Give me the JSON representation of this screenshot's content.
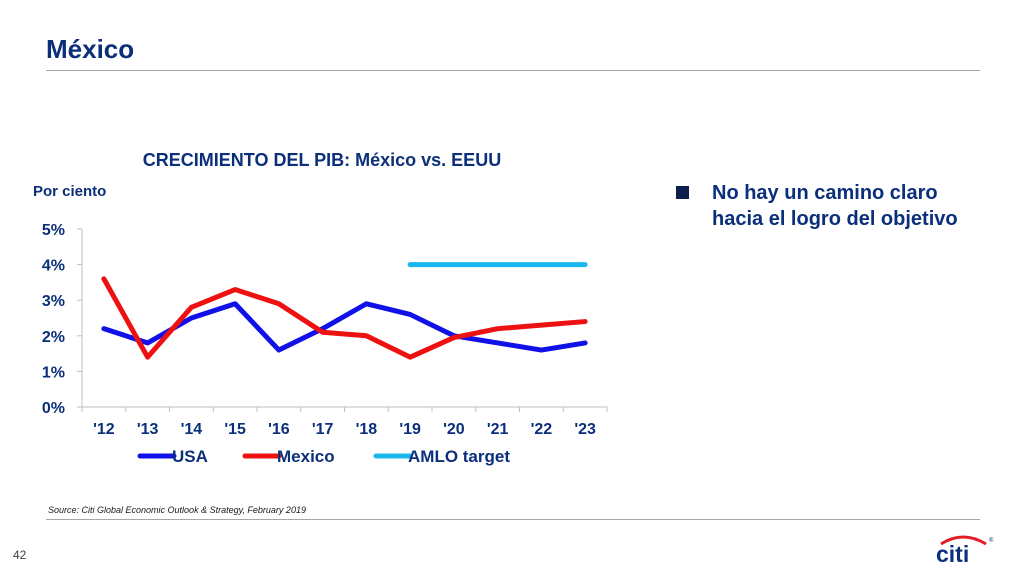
{
  "slide": {
    "title": "México",
    "page_number": "42",
    "source": "Source: Citi Global Economic Outlook & Strategy, February 2019",
    "bullet": "No hay un camino claro hacia el logro del objetivo",
    "logo_text": "citi",
    "logo_mark": "®",
    "title_color": "#0b2f7a"
  },
  "chart_data": {
    "type": "line",
    "title": "CRECIMIENTO DEL PIB: México vs. EEUU",
    "ylabel": "Por ciento",
    "xlabel": "",
    "categories": [
      "'12",
      "'13",
      "'14",
      "'15",
      "'16",
      "'17",
      "'18",
      "'19",
      "'20",
      "'21",
      "'22",
      "'23"
    ],
    "yticks": [
      "0%",
      "1%",
      "2%",
      "3%",
      "4%",
      "5%"
    ],
    "ylim": [
      0,
      5
    ],
    "grid": false,
    "legend_position": "bottom",
    "series": [
      {
        "name": "USA",
        "color": "#1010e8",
        "values": [
          2.2,
          1.8,
          2.5,
          2.9,
          1.6,
          2.2,
          2.9,
          2.6,
          2.0,
          1.8,
          1.6,
          1.8
        ]
      },
      {
        "name": "Mexico",
        "color": "#ee1111",
        "values": [
          3.6,
          1.4,
          2.8,
          3.3,
          2.9,
          2.1,
          2.0,
          1.4,
          1.95,
          2.2,
          2.3,
          2.4
        ]
      },
      {
        "name": "AMLO target",
        "color": "#1ab8ee",
        "values": [
          null,
          null,
          null,
          null,
          null,
          null,
          null,
          4.0,
          4.0,
          4.0,
          4.0,
          4.0
        ]
      }
    ]
  }
}
